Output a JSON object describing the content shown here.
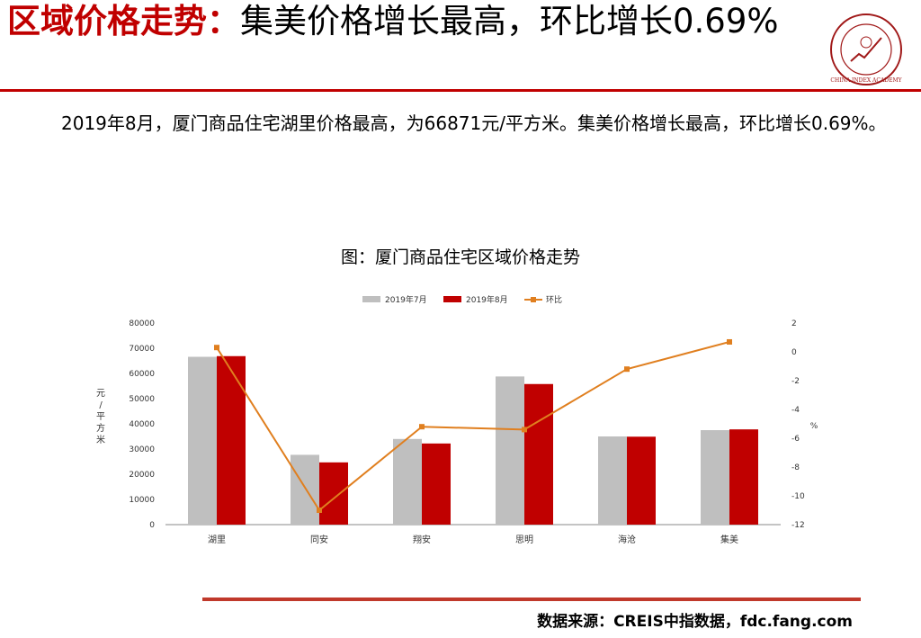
{
  "header": {
    "title_accent": "区域价格走势：",
    "title_rest": "集美价格增长最高，环比增长0.69%"
  },
  "body_text": "2019年8月，厦门商品住宅湖里价格最高，为66871元/平方米。集美价格增长最高，环比增长0.69%。",
  "chart_title": "图：厦门商品住宅区域价格走势",
  "source_text": "数据来源：CREIS中指数据，fdc.fang.com",
  "colors": {
    "accent": "#c00000",
    "series_jul": "#bfbfbf",
    "series_aug": "#c00000",
    "series_mom": "#e07f1f"
  },
  "chart_data": {
    "type": "bar",
    "categories": [
      "湖里",
      "同安",
      "翔安",
      "思明",
      "海沧",
      "集美"
    ],
    "series": [
      {
        "name": "2019年7月",
        "type": "bar",
        "values": [
          66600,
          27700,
          34000,
          58800,
          35000,
          37500
        ]
      },
      {
        "name": "2019年8月",
        "type": "bar",
        "values": [
          66871,
          24700,
          32200,
          55800,
          34900,
          37800
        ]
      },
      {
        "name": "环比",
        "type": "line",
        "axis": "right",
        "values": [
          0.3,
          -11.0,
          -5.2,
          -5.4,
          -1.2,
          0.69
        ]
      }
    ],
    "ylabel": "元/平方米",
    "y2label": "%",
    "ylim": [
      0,
      80000
    ],
    "y2lim": [
      -12,
      2
    ],
    "yticks": [
      "0",
      "10000",
      "20000",
      "30000",
      "40000",
      "50000",
      "60000",
      "70000",
      "80000"
    ],
    "y2ticks": [
      "-12",
      "-10",
      "-8",
      "-6",
      "-4",
      "-2",
      "0",
      "2"
    ],
    "legend_position": "top",
    "grid": false
  }
}
